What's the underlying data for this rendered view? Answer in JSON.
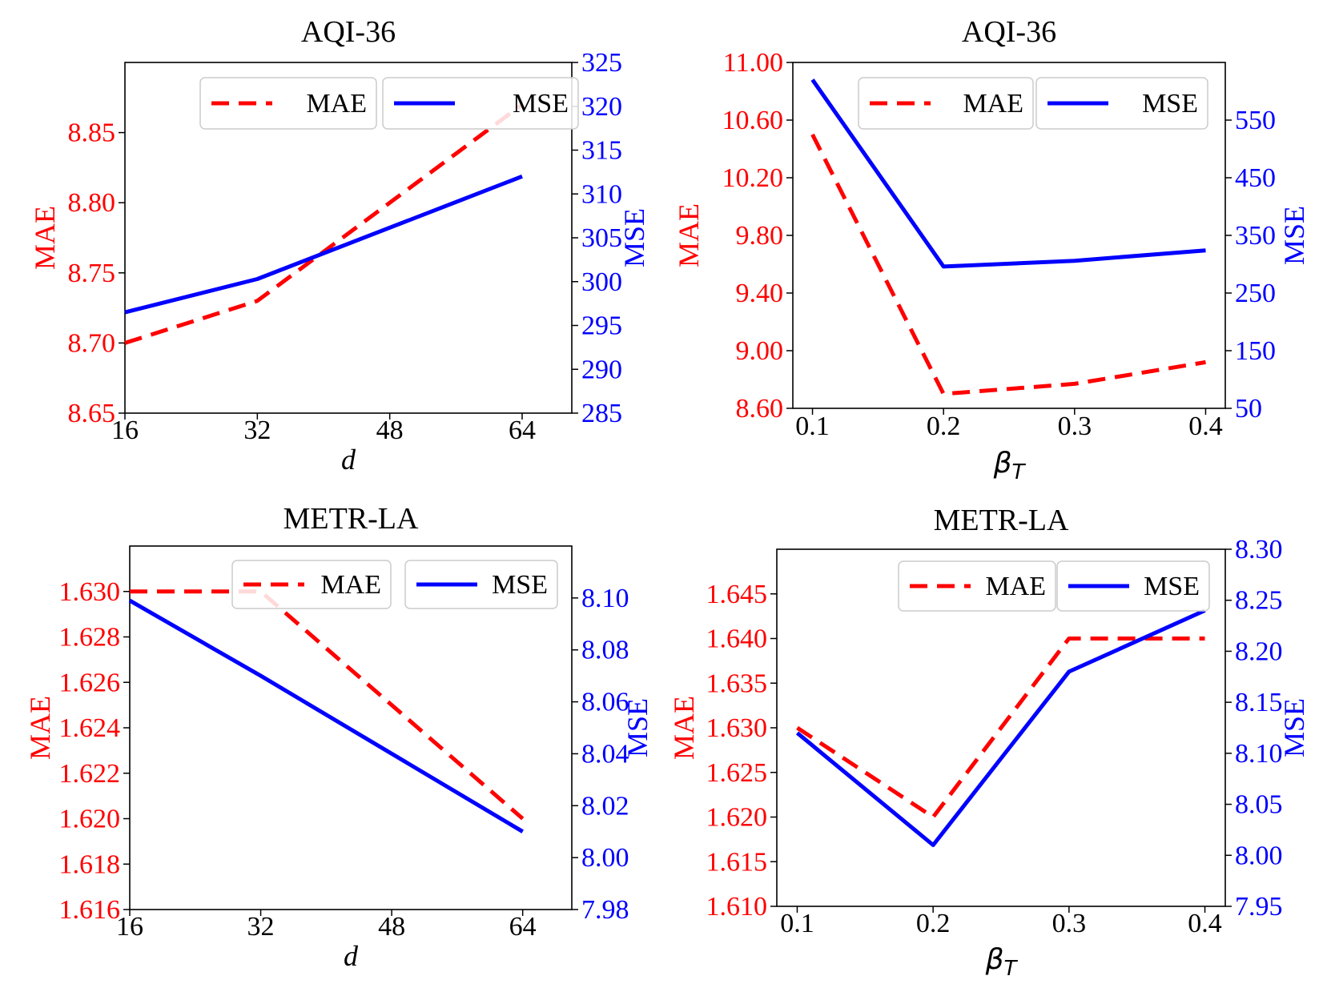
{
  "chart_data": [
    {
      "type": "line",
      "title": "AQI-36",
      "xlabel": "d",
      "ylabel_left": "MAE",
      "ylabel_right": "MSE",
      "x": [
        16,
        32,
        64
      ],
      "xlim": [
        16,
        70
      ],
      "xticks": [
        16,
        32,
        48,
        64
      ],
      "xtick_labels": [
        "16",
        "32",
        "48",
        "64"
      ],
      "y_left_lim": [
        8.65,
        8.9
      ],
      "y_left_ticks": [
        8.65,
        8.7,
        8.75,
        8.8,
        8.85
      ],
      "y_left_tick_labels": [
        "8.65",
        "8.70",
        "8.75",
        "8.80",
        "8.85"
      ],
      "y_right_lim": [
        285,
        325
      ],
      "y_right_ticks": [
        285,
        290,
        295,
        300,
        305,
        310,
        315,
        320,
        325
      ],
      "y_right_tick_labels": [
        "285",
        "290",
        "295",
        "300",
        "305",
        "310",
        "315",
        "320",
        "325"
      ],
      "series": [
        {
          "name": "MAE",
          "axis": "left",
          "style": "dashed",
          "color": "#ff0000",
          "values": [
            8.7,
            8.73,
            8.87
          ]
        },
        {
          "name": "MSE",
          "axis": "right",
          "style": "solid",
          "color": "#0000ff",
          "values": [
            296.5,
            300.3,
            312
          ]
        }
      ],
      "legend": {
        "position": "top-right",
        "labels": [
          "MAE",
          "MSE"
        ]
      }
    },
    {
      "type": "line",
      "title": "AQI-36",
      "xlabel": "βT",
      "ylabel_left": "MAE",
      "ylabel_right": "MSE",
      "x": [
        0.1,
        0.2,
        0.3,
        0.4
      ],
      "xlim": [
        0.085,
        0.415
      ],
      "xticks": [
        0.1,
        0.2,
        0.3,
        0.4
      ],
      "xtick_labels": [
        "0.1",
        "0.2",
        "0.3",
        "0.4"
      ],
      "y_left_lim": [
        8.6,
        11.0
      ],
      "y_left_ticks": [
        8.6,
        9.0,
        9.4,
        9.8,
        10.2,
        10.6,
        11.0
      ],
      "y_left_tick_labels": [
        "8.60",
        "9.00",
        "9.40",
        "9.80",
        "10.20",
        "10.60",
        "11.00"
      ],
      "y_right_lim": [
        50,
        650
      ],
      "y_right_ticks": [
        50,
        150,
        250,
        350,
        450,
        550
      ],
      "y_right_tick_labels": [
        "50",
        "150",
        "250",
        "350",
        "450",
        "550"
      ],
      "series": [
        {
          "name": "MAE",
          "axis": "left",
          "style": "dashed",
          "color": "#ff0000",
          "values": [
            10.5,
            8.7,
            8.77,
            8.92
          ]
        },
        {
          "name": "MSE",
          "axis": "right",
          "style": "solid",
          "color": "#0000ff",
          "values": [
            620,
            296,
            306,
            324
          ]
        }
      ],
      "legend": {
        "position": "top-right",
        "labels": [
          "MAE",
          "MSE"
        ]
      }
    },
    {
      "type": "line",
      "title": "METR-LA",
      "xlabel": "d",
      "ylabel_left": "MAE",
      "ylabel_right": "MSE",
      "x": [
        16,
        32,
        64
      ],
      "xlim": [
        16,
        70
      ],
      "xticks": [
        16,
        32,
        48,
        64
      ],
      "xtick_labels": [
        "16",
        "32",
        "48",
        "64"
      ],
      "y_left_lim": [
        1.616,
        1.632
      ],
      "y_left_ticks": [
        1.616,
        1.618,
        1.62,
        1.622,
        1.624,
        1.626,
        1.628,
        1.63
      ],
      "y_left_tick_labels": [
        "1.616",
        "1.618",
        "1.620",
        "1.622",
        "1.624",
        "1.626",
        "1.628",
        "1.630"
      ],
      "y_right_lim": [
        7.98,
        8.12
      ],
      "y_right_ticks": [
        7.98,
        8.0,
        8.02,
        8.04,
        8.06,
        8.08,
        8.1
      ],
      "y_right_tick_labels": [
        "7.98",
        "8.00",
        "8.02",
        "8.04",
        "8.06",
        "8.08",
        "8.10"
      ],
      "series": [
        {
          "name": "MAE",
          "axis": "left",
          "style": "dashed",
          "color": "#ff0000",
          "values": [
            1.63,
            1.63,
            1.62
          ]
        },
        {
          "name": "MSE",
          "axis": "right",
          "style": "solid",
          "color": "#0000ff",
          "values": [
            8.099,
            8.07,
            8.01
          ]
        }
      ],
      "legend": {
        "position": "top-right",
        "labels": [
          "MAE",
          "MSE"
        ]
      }
    },
    {
      "type": "line",
      "title": "METR-LA",
      "xlabel": "βT",
      "ylabel_left": "MAE",
      "ylabel_right": "MSE",
      "x": [
        0.1,
        0.2,
        0.3,
        0.4
      ],
      "xlim": [
        0.085,
        0.415
      ],
      "xticks": [
        0.1,
        0.2,
        0.3,
        0.4
      ],
      "xtick_labels": [
        "0.1",
        "0.2",
        "0.3",
        "0.4"
      ],
      "y_left_lim": [
        1.61,
        1.65
      ],
      "y_left_ticks": [
        1.61,
        1.615,
        1.62,
        1.625,
        1.63,
        1.635,
        1.64,
        1.645
      ],
      "y_left_tick_labels": [
        "1.610",
        "1.615",
        "1.620",
        "1.625",
        "1.630",
        "1.635",
        "1.640",
        "1.645"
      ],
      "y_right_lim": [
        7.95,
        8.3
      ],
      "y_right_ticks": [
        7.95,
        8.0,
        8.05,
        8.1,
        8.15,
        8.2,
        8.25,
        8.3
      ],
      "y_right_tick_labels": [
        "7.95",
        "8.00",
        "8.05",
        "8.10",
        "8.15",
        "8.20",
        "8.25",
        "8.30"
      ],
      "series": [
        {
          "name": "MAE",
          "axis": "left",
          "style": "dashed",
          "color": "#ff0000",
          "values": [
            1.63,
            1.62,
            1.64,
            1.64
          ]
        },
        {
          "name": "MSE",
          "axis": "right",
          "style": "solid",
          "color": "#0000ff",
          "values": [
            8.12,
            8.01,
            8.18,
            8.24
          ]
        }
      ],
      "legend": {
        "position": "top-right",
        "labels": [
          "MAE",
          "MSE"
        ]
      }
    }
  ]
}
